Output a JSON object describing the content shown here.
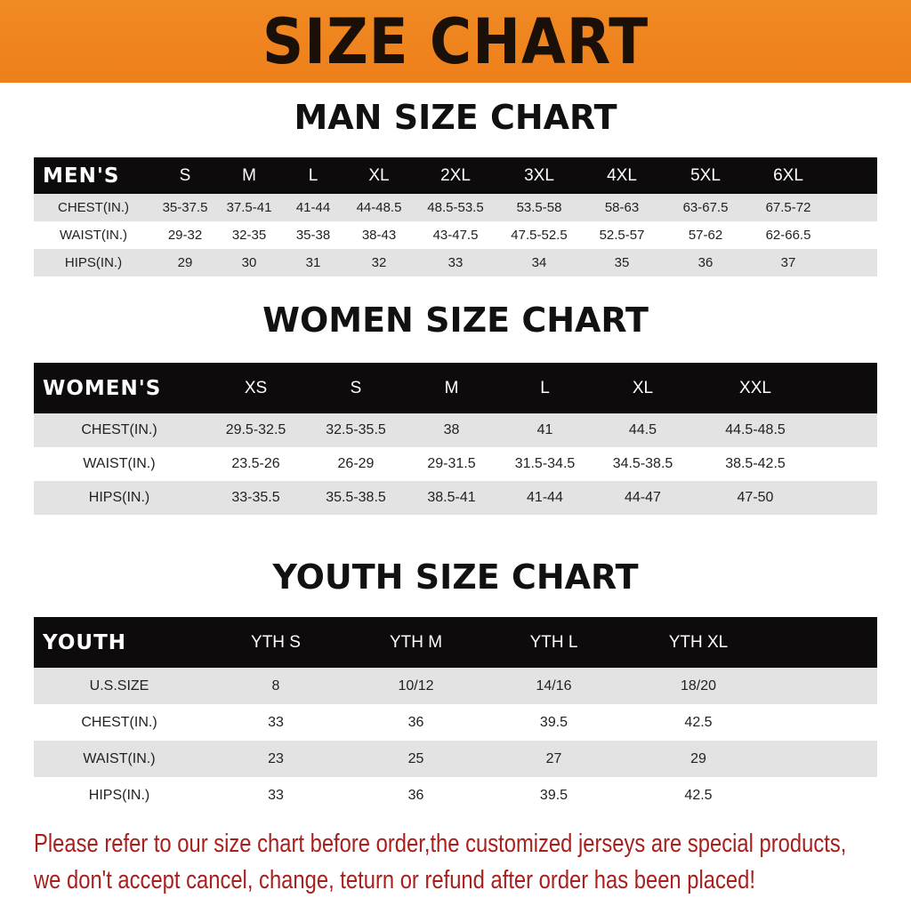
{
  "title": "SIZE CHART",
  "men": {
    "title": "MAN SIZE CHART",
    "header": [
      "MEN'S",
      "S",
      "M",
      "L",
      "XL",
      "2XL",
      "3XL",
      "4XL",
      "5XL",
      "6XL"
    ],
    "rows": [
      [
        "CHEST(IN.)",
        "35-37.5",
        "37.5-41",
        "41-44",
        "44-48.5",
        "48.5-53.5",
        "53.5-58",
        "58-63",
        "63-67.5",
        "67.5-72"
      ],
      [
        "WAIST(IN.)",
        "29-32",
        "32-35",
        "35-38",
        "38-43",
        "43-47.5",
        "47.5-52.5",
        "52.5-57",
        "57-62",
        "62-66.5"
      ],
      [
        "HIPS(IN.)",
        "29",
        "30",
        "31",
        "32",
        "33",
        "34",
        "35",
        "36",
        "37"
      ]
    ]
  },
  "women": {
    "title": "WOMEN SIZE CHART",
    "header": [
      "WOMEN'S",
      "XS",
      "S",
      "M",
      "L",
      "XL",
      "XXL"
    ],
    "rows": [
      [
        "CHEST(IN.)",
        "29.5-32.5",
        "32.5-35.5",
        "38",
        "41",
        "44.5",
        "44.5-48.5"
      ],
      [
        "WAIST(IN.)",
        "23.5-26",
        "26-29",
        "29-31.5",
        "31.5-34.5",
        "34.5-38.5",
        "38.5-42.5"
      ],
      [
        "HIPS(IN.)",
        "33-35.5",
        "35.5-38.5",
        "38.5-41",
        "41-44",
        "44-47",
        "47-50"
      ]
    ]
  },
  "youth": {
    "title": "YOUTH SIZE CHART",
    "header": [
      "YOUTH",
      "YTH S",
      "YTH M",
      "YTH L",
      "YTH XL"
    ],
    "rows": [
      [
        "U.S.SIZE",
        "8",
        "10/12",
        "14/16",
        "18/20"
      ],
      [
        "CHEST(IN.)",
        "33",
        "36",
        "39.5",
        "42.5"
      ],
      [
        "WAIST(IN.)",
        "23",
        "25",
        "27",
        "29"
      ],
      [
        "HIPS(IN.)",
        "33",
        "36",
        "39.5",
        "42.5"
      ]
    ]
  },
  "notice": [
    "Please refer to our size chart before order,the customized jerseys are special products,",
    "we don't accept cancel, change, teturn or refund after order has been placed!"
  ],
  "colors": {
    "banner": "#ee7f1a",
    "header_row": "#0d0b0b",
    "stripe": "#e3e3e3",
    "notice": "#a8201e"
  }
}
